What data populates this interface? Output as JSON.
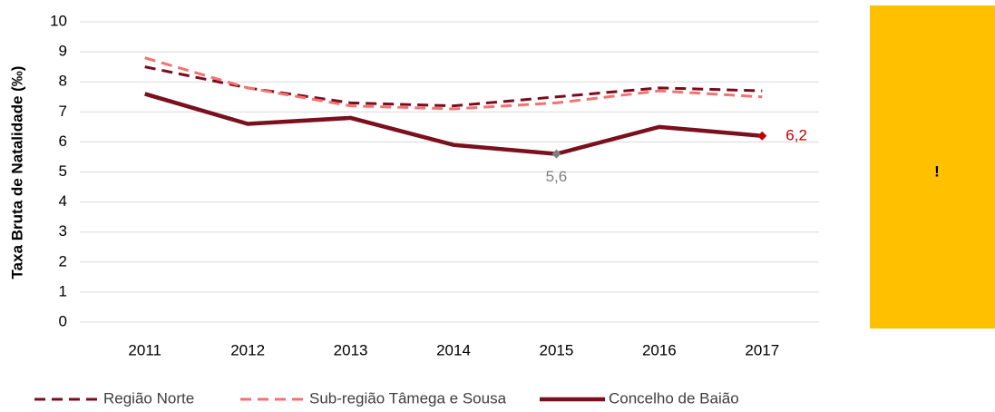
{
  "chart_data": {
    "type": "line",
    "y_label": "Taxa Bruta de Natalidade (‰)",
    "categories": [
      "2011",
      "2012",
      "2013",
      "2014",
      "2015",
      "2016",
      "2017"
    ],
    "series": [
      {
        "name": "Região Norte",
        "color": "#7b0c1f",
        "dashed": true,
        "values": [
          8.5,
          7.8,
          7.3,
          7.2,
          7.5,
          7.8,
          7.7
        ]
      },
      {
        "name": "Sub-região Tâmega e Sousa",
        "color": "#f4726f",
        "dashed": true,
        "values": [
          8.8,
          7.8,
          7.2,
          7.1,
          7.3,
          7.7,
          7.5
        ]
      },
      {
        "name": "Concelho de Baião",
        "color": "#7a0f1e",
        "dashed": false,
        "values": [
          7.6,
          6.6,
          6.8,
          5.9,
          5.6,
          6.5,
          6.2
        ],
        "value_labels": [
          null,
          null,
          null,
          null,
          "5,6",
          null,
          "6,2"
        ],
        "label_colors": [
          null,
          null,
          null,
          null,
          "#7f7f7f",
          null,
          "#c00000"
        ]
      }
    ],
    "ylim": [
      0,
      10
    ],
    "yticks": [
      0,
      1,
      2,
      3,
      4,
      5,
      6,
      7,
      8,
      9,
      10
    ],
    "grid": true,
    "legend": "bottom",
    "annotation": {
      "text": "!",
      "color": "#ffc000"
    }
  }
}
